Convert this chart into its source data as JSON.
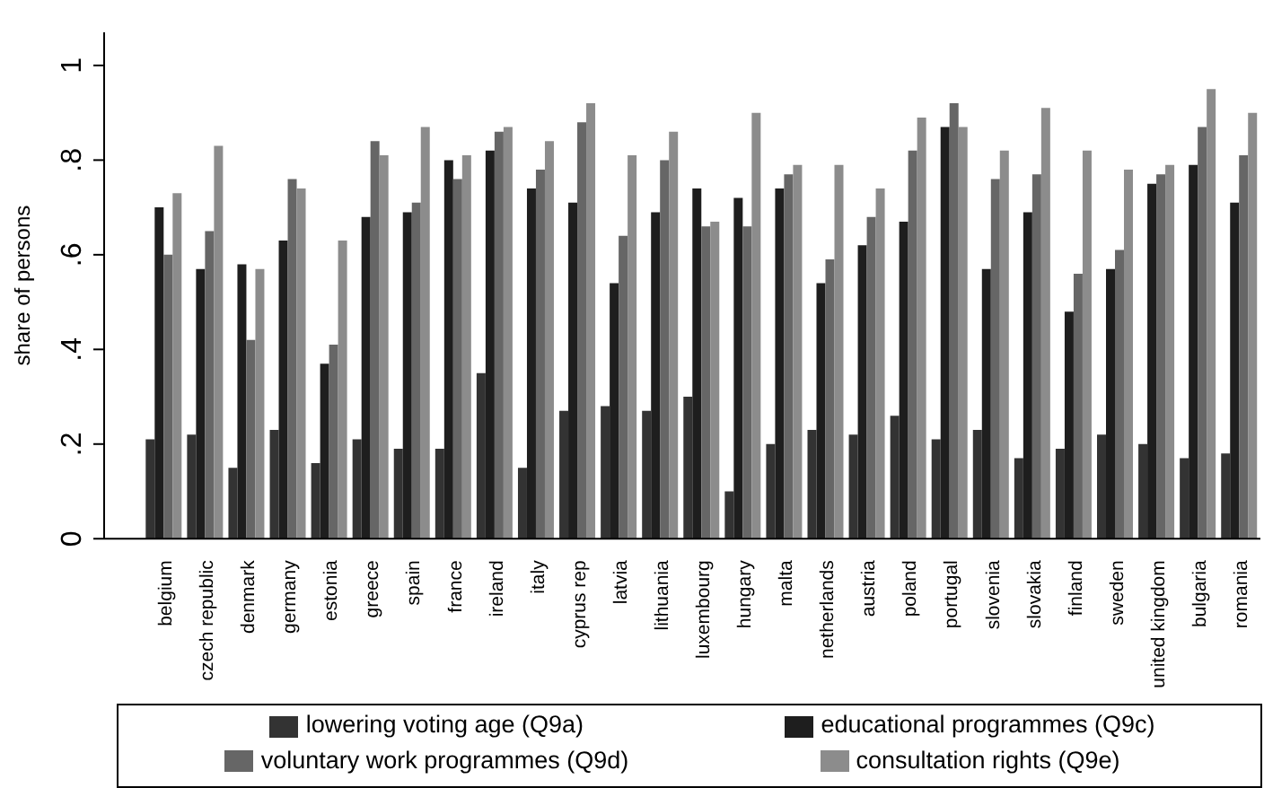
{
  "chart_data": {
    "type": "bar",
    "ylabel": "share of persons",
    "categories": [
      "belgium",
      "czech republic",
      "denmark",
      "germany",
      "estonia",
      "greece",
      "spain",
      "france",
      "ireland",
      "italy",
      "cyprus rep",
      "latvia",
      "lithuania",
      "luxembourg",
      "hungary",
      "malta",
      "netherlands",
      "austria",
      "poland",
      "portugal",
      "slovenia",
      "slovakia",
      "finland",
      "sweden",
      "united kingdom",
      "bulgaria",
      "romania"
    ],
    "series": [
      {
        "name": "lowering voting age (Q9a)",
        "color": "#333333",
        "values": [
          0.21,
          0.22,
          0.15,
          0.23,
          0.16,
          0.21,
          0.19,
          0.19,
          0.35,
          0.15,
          0.27,
          0.28,
          0.27,
          0.3,
          0.1,
          0.2,
          0.23,
          0.22,
          0.26,
          0.21,
          0.23,
          0.17,
          0.19,
          0.22,
          0.2,
          0.17,
          0.18
        ]
      },
      {
        "name": "educational programmes (Q9c)",
        "color": "#1e1e1e",
        "values": [
          0.7,
          0.57,
          0.58,
          0.63,
          0.37,
          0.68,
          0.69,
          0.8,
          0.82,
          0.74,
          0.71,
          0.54,
          0.69,
          0.74,
          0.72,
          0.74,
          0.54,
          0.62,
          0.67,
          0.87,
          0.57,
          0.69,
          0.48,
          0.57,
          0.75,
          0.79,
          0.71
        ]
      },
      {
        "name": "voluntary work programmes (Q9d)",
        "color": "#666666",
        "values": [
          0.6,
          0.65,
          0.42,
          0.76,
          0.41,
          0.84,
          0.71,
          0.76,
          0.86,
          0.78,
          0.88,
          0.64,
          0.8,
          0.66,
          0.66,
          0.77,
          0.59,
          0.68,
          0.82,
          0.92,
          0.76,
          0.77,
          0.56,
          0.61,
          0.77,
          0.87,
          0.81
        ]
      },
      {
        "name": "consultation rights (Q9e)",
        "color": "#8c8c8c",
        "values": [
          0.73,
          0.83,
          0.57,
          0.74,
          0.63,
          0.81,
          0.87,
          0.81,
          0.87,
          0.84,
          0.92,
          0.81,
          0.86,
          0.67,
          0.9,
          0.79,
          0.79,
          0.74,
          0.89,
          0.87,
          0.82,
          0.91,
          0.82,
          0.78,
          0.79,
          0.95,
          0.9
        ]
      }
    ],
    "ylim": [
      0,
      1.07
    ],
    "yticks": [
      0,
      {
        "value": 0.2,
        "label": ".2"
      },
      {
        "value": 0.4,
        "label": ".4"
      },
      {
        "value": 0.6,
        "label": ".6"
      },
      {
        "value": 0.8,
        "label": ".8"
      },
      1
    ],
    "grid": false,
    "legend": "bottom"
  }
}
